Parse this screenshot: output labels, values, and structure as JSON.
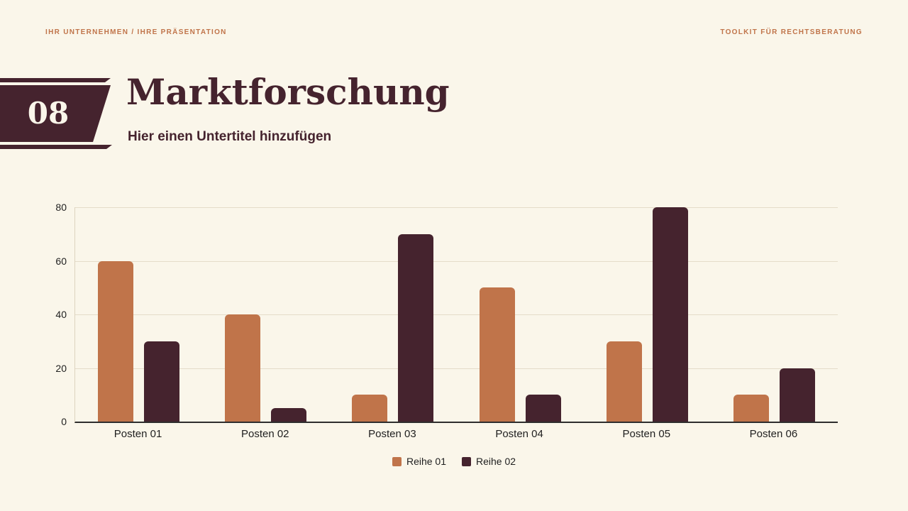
{
  "page": {
    "background": "#faf6ea",
    "accent_orange": "#c0744a",
    "accent_dark": "#45232e"
  },
  "header": {
    "left": "IHR UNTERNEHMEN / IHRE PRÄSENTATION",
    "right": "TOOLKIT FÜR RECHTSBERATUNG"
  },
  "title_block": {
    "number": "08",
    "title": "Marktforschung",
    "subtitle": "Hier einen Untertitel hinzufügen"
  },
  "chart_data": {
    "type": "bar",
    "title": "",
    "xlabel": "",
    "ylabel": "",
    "categories": [
      "Posten 01",
      "Posten 02",
      "Posten 03",
      "Posten 04",
      "Posten 05",
      "Posten 06"
    ],
    "series": [
      {
        "name": "Reihe 01",
        "color": "#c0744a",
        "values": [
          60,
          40,
          10,
          50,
          30,
          10
        ]
      },
      {
        "name": "Reihe 02",
        "color": "#45232e",
        "values": [
          30,
          5,
          70,
          10,
          80,
          20
        ]
      }
    ],
    "ylim": [
      0,
      80
    ],
    "yticks": [
      0,
      20,
      40,
      60,
      80
    ],
    "grid": true,
    "legend_position": "bottom"
  }
}
